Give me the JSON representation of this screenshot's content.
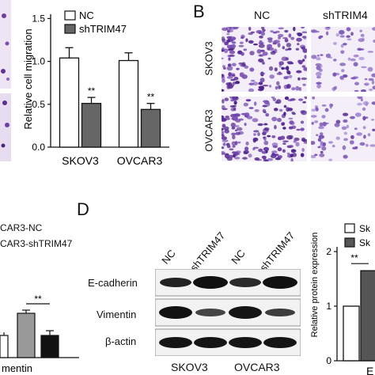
{
  "panel_letters": {
    "b": "B",
    "d": "D"
  },
  "panel_a_chart": {
    "chart_data": {
      "type": "bar",
      "categories": [
        "SKOV3",
        "OVCAR3"
      ],
      "series": [
        {
          "name": "NC",
          "values": [
            1.04,
            1.01
          ],
          "errors": [
            0.12,
            0.09
          ],
          "color": "#ffffff"
        },
        {
          "name": "shTRIM47",
          "values": [
            0.51,
            0.44
          ],
          "errors": [
            0.07,
            0.07
          ],
          "color": "#666666"
        }
      ],
      "ylabel": "Relative cell migration",
      "yticks": [
        "0.0",
        "0.5",
        "1.0",
        "1.5"
      ],
      "ylim": [
        0,
        1.55
      ],
      "significance": [
        "**",
        "**"
      ],
      "legend_position": "top"
    }
  },
  "panel_b": {
    "col_labels": [
      "NC",
      "shTRIM4"
    ],
    "row_labels": [
      "SKOV3",
      "OVCAR3"
    ]
  },
  "panel_c_fragment": {
    "legend": [
      "CAR3-NC",
      "CAR3-shTRIM47"
    ],
    "significance": "**",
    "xlabel": "mentin",
    "bar_colors": [
      "#ffffff",
      "#999999",
      "#111111"
    ]
  },
  "panel_d_blot": {
    "lane_labels": [
      "NC",
      "shTRIM47",
      "NC",
      "shTRIM47"
    ],
    "row_labels": [
      "E-cadherin",
      "Vimentin",
      "β-actin"
    ],
    "group_labels": [
      "SKOV3",
      "OVCAR3"
    ]
  },
  "panel_d_chart": {
    "chart_data": {
      "type": "bar",
      "categories": [
        "E"
      ],
      "series": [
        {
          "name": "Sk",
          "values": [
            1.0
          ],
          "color": "#ffffff"
        },
        {
          "name": "Sk",
          "values": [
            1.65
          ],
          "color": "#555555"
        }
      ],
      "ylabel": "Relative protein expression",
      "yticks": [
        "0",
        "1",
        "2"
      ],
      "ylim": [
        0,
        2
      ],
      "significance": "**"
    }
  }
}
